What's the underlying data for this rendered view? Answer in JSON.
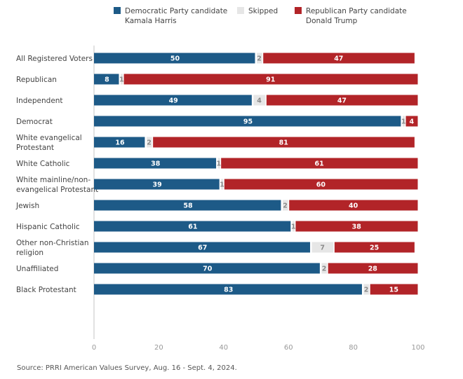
{
  "chart_data": {
    "type": "bar",
    "orientation": "horizontal",
    "stacked": true,
    "title": "",
    "xlabel": "",
    "ylabel": "",
    "xlim": [
      0,
      100
    ],
    "xticks": [
      0,
      20,
      40,
      60,
      80,
      100
    ],
    "grid": false,
    "legend_position": "top",
    "categories": [
      "All Registered Voters",
      "Republican",
      "Independent",
      "Democrat",
      "White evangelical Protestant",
      "White Catholic",
      "White mainline/non-evangelical Protestant",
      "Jewish",
      "Hispanic Catholic",
      "Other non-Christian religion",
      "Unaffiliated",
      "Black Protestant"
    ],
    "category_label_lines": [
      [
        "All Registered Voters"
      ],
      [
        "Republican"
      ],
      [
        "Independent"
      ],
      [
        "Democrat"
      ],
      [
        "White evangelical",
        "Protestant"
      ],
      [
        "White Catholic"
      ],
      [
        "White mainline/non-",
        "evangelical Protestant"
      ],
      [
        "Jewish"
      ],
      [
        "Hispanic Catholic"
      ],
      [
        "Other non-Christian",
        "religion"
      ],
      [
        "Unaffiliated"
      ],
      [
        "Black Protestant"
      ]
    ],
    "groups": [
      [
        0
      ],
      [
        1,
        2,
        3
      ],
      [
        4,
        5,
        6,
        7,
        8,
        9,
        10,
        11
      ]
    ],
    "series": [
      {
        "name": "Democratic Party candidate Kamala Harris",
        "legend_lines": [
          "Democratic Party candidate",
          "Kamala Harris"
        ],
        "color": "#1d5a87",
        "label_color": "#ffffff",
        "values": [
          50,
          8,
          49,
          95,
          16,
          38,
          39,
          58,
          61,
          67,
          70,
          83
        ]
      },
      {
        "name": "Skipped",
        "legend_lines": [
          "Skipped"
        ],
        "color": "#e6e6e6",
        "label_color": "#8a8a8a",
        "values": [
          2,
          1,
          4,
          1,
          2,
          1,
          1,
          2,
          1,
          7,
          2,
          2
        ]
      },
      {
        "name": "Republican Party candidate Donald Trump",
        "legend_lines": [
          "Republican Party candidate",
          "Donald Trump"
        ],
        "color": "#b22428",
        "label_color": "#ffffff",
        "values": [
          47,
          91,
          47,
          4,
          81,
          61,
          60,
          40,
          38,
          25,
          28,
          15
        ]
      }
    ],
    "source": "Source: PRRI American Values Survey, Aug. 16 - Sept. 4, 2024."
  }
}
